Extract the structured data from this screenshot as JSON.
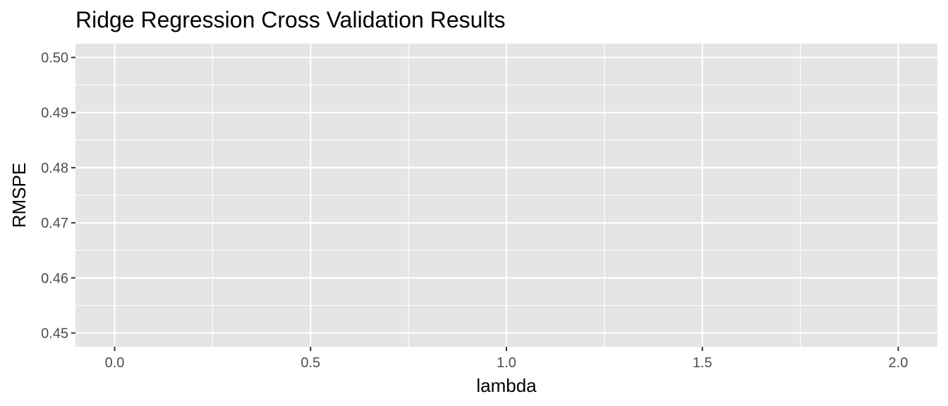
{
  "chart_data": {
    "type": "line",
    "title": "Ridge Regression Cross Validation Results",
    "xlabel": "lambda",
    "ylabel": "RMSPE",
    "xlim": [
      -0.1,
      2.1
    ],
    "ylim": [
      0.4475,
      0.5025
    ],
    "x_ticks": [
      0.0,
      0.5,
      1.0,
      1.5,
      2.0
    ],
    "x_tick_labels": [
      "0.0",
      "0.5",
      "1.0",
      "1.5",
      "2.0"
    ],
    "y_ticks": [
      0.45,
      0.46,
      0.47,
      0.48,
      0.49,
      0.5
    ],
    "y_tick_labels": [
      "0.45",
      "0.46",
      "0.47",
      "0.48",
      "0.49",
      "0.50"
    ],
    "grid": true,
    "legend": "none",
    "series": [],
    "colors": {
      "panel_background": "#e5e5e5",
      "grid_line": "#ffffff",
      "tick_mark": "#333333",
      "tick_label": "#4d4d4d",
      "text": "#000000"
    }
  }
}
